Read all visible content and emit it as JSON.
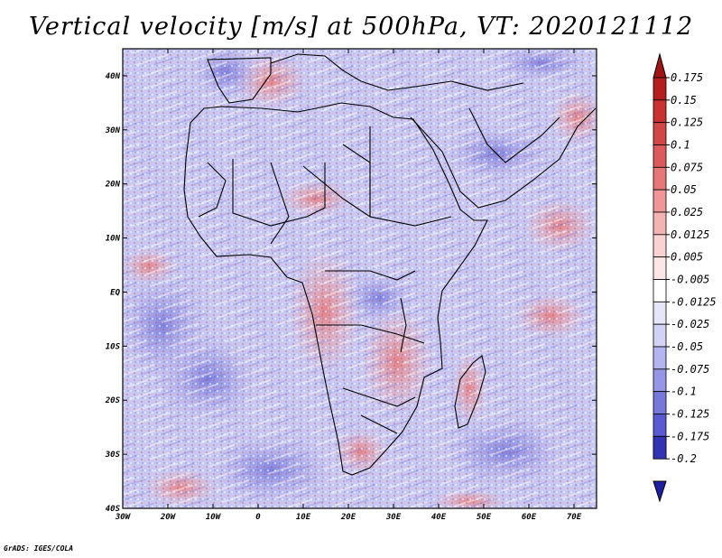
{
  "title": "Vertical velocity [m/s] at 500hPa, VT: 2020121112",
  "footer": "GrADS: IGES/COLA",
  "map": {
    "lon_range": [
      -30,
      75
    ],
    "lat_range": [
      -40,
      45
    ],
    "lon_ticks": [
      {
        "value": -30,
        "label": "30W"
      },
      {
        "value": -20,
        "label": "20W"
      },
      {
        "value": -10,
        "label": "10W"
      },
      {
        "value": 0,
        "label": "0"
      },
      {
        "value": 10,
        "label": "10E"
      },
      {
        "value": 20,
        "label": "20E"
      },
      {
        "value": 30,
        "label": "30E"
      },
      {
        "value": 40,
        "label": "40E"
      },
      {
        "value": 50,
        "label": "50E"
      },
      {
        "value": 60,
        "label": "60E"
      },
      {
        "value": 70,
        "label": "70E"
      }
    ],
    "lat_ticks": [
      {
        "value": 40,
        "label": "40N"
      },
      {
        "value": 30,
        "label": "30N"
      },
      {
        "value": 20,
        "label": "20N"
      },
      {
        "value": 10,
        "label": "10N"
      },
      {
        "value": 0,
        "label": "EQ"
      },
      {
        "value": -10,
        "label": "10S"
      },
      {
        "value": -20,
        "label": "20S"
      },
      {
        "value": -30,
        "label": "30S"
      },
      {
        "value": -40,
        "label": "40S"
      }
    ]
  },
  "colorbar": {
    "levels": [
      {
        "label": "0.175",
        "color": "#b41e1e"
      },
      {
        "label": "0.15",
        "color": "#c83232"
      },
      {
        "label": "0.125",
        "color": "#d24646"
      },
      {
        "label": "0.1",
        "color": "#dc5a5a"
      },
      {
        "label": "0.075",
        "color": "#e67878"
      },
      {
        "label": "0.05",
        "color": "#f09696"
      },
      {
        "label": "0.025",
        "color": "#f5b4b4"
      },
      {
        "label": "0.0125",
        "color": "#fad2d2"
      },
      {
        "label": "0.005",
        "color": "#fde6e6"
      },
      {
        "label": "-0.005",
        "color": "#ffffff"
      },
      {
        "label": "-0.0125",
        "color": "#e6e6fa"
      },
      {
        "label": "-0.025",
        "color": "#d2d2f5"
      },
      {
        "label": "-0.05",
        "color": "#b4b4f0"
      },
      {
        "label": "-0.075",
        "color": "#9696e6"
      },
      {
        "label": "-0.1",
        "color": "#7878dc"
      },
      {
        "label": "-0.125",
        "color": "#5a5ad2"
      },
      {
        "label": "-0.175",
        "color": "#4646c8"
      },
      {
        "label": "-0.2",
        "color": "#3232b4"
      }
    ],
    "top_color": "#a01414",
    "bottom_color": "#1e1ea0"
  }
}
